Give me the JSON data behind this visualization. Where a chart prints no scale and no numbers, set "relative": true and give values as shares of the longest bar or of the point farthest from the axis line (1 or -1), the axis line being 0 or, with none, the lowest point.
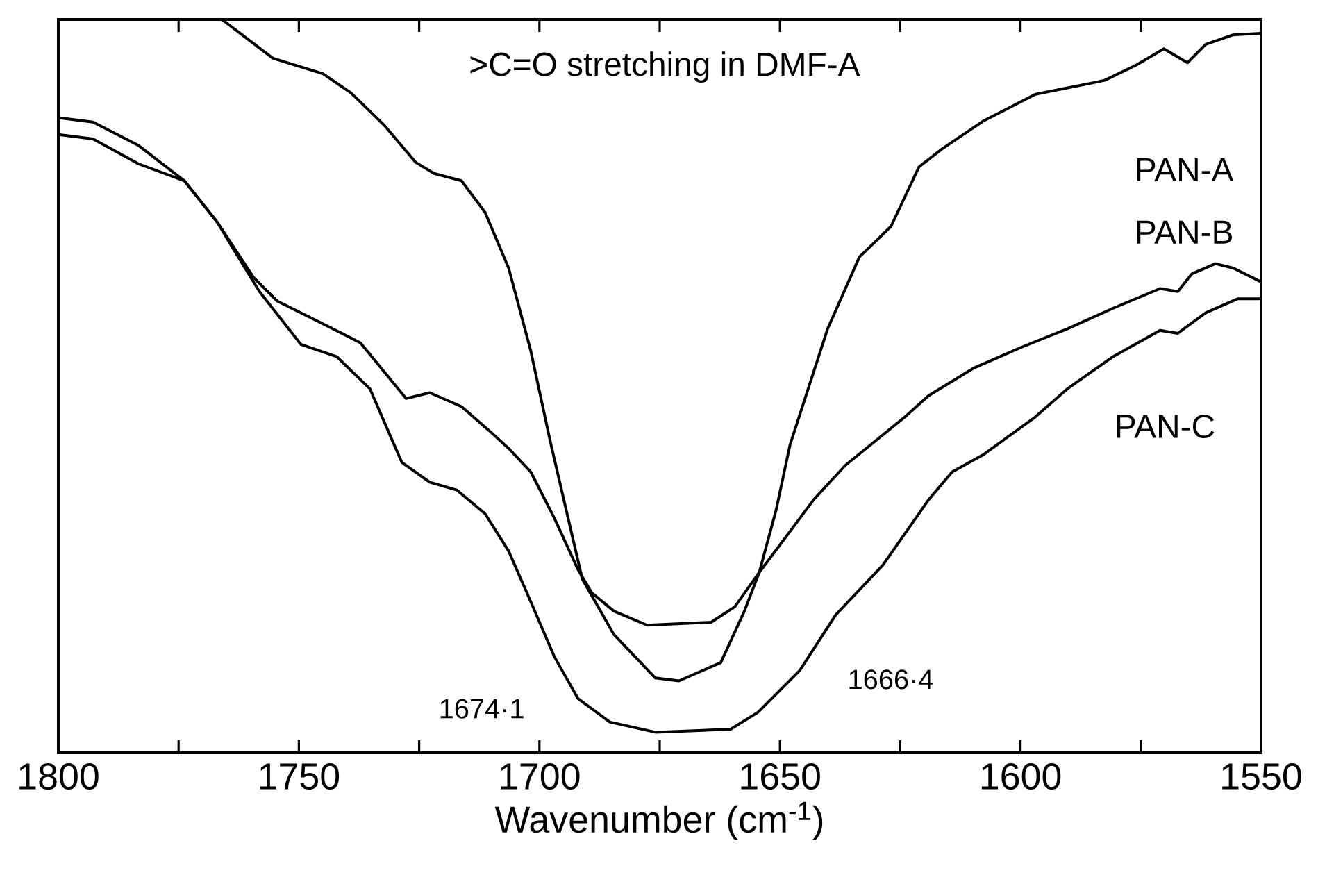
{
  "chart_data": {
    "type": "line",
    "title": ">C=O stretching in DMF-A",
    "xlabel": "Wavenumber (cm$^{-1}$)",
    "relative": true,
    "xlim": [
      1800,
      1550
    ],
    "xticks": [
      1800,
      {
        "value": 1775,
        "label": null
      },
      1750,
      {
        "value": 1725,
        "label": null
      },
      1700,
      {
        "value": 1675,
        "label": null
      },
      1650,
      {
        "value": 1625,
        "label": null
      },
      1600,
      {
        "value": 1575,
        "label": null
      },
      1550
    ],
    "legend": false,
    "grid": false,
    "marker": "none",
    "line_style": "solid",
    "annotations": [
      "1674·1",
      "1666·4"
    ],
    "series": [
      {
        "name": "PAN-A",
        "color": "#000000",
        "x": [
          1766.0,
          1755.4,
          1745.0,
          1739.2,
          1732.3,
          1725.7,
          1721.9,
          1716.2,
          1711.3,
          1706.4,
          1701.8,
          1697.8,
          1691.1,
          1684.5,
          1675.9,
          1671.0,
          1662.3,
          1657.4,
          1654.3,
          1650.8,
          1647.9,
          1640.1,
          1633.5,
          1626.9,
          1621.1,
          1616.2,
          1607.6,
          1596.9,
          1585.4,
          1582.5,
          1575.9,
          1570.2,
          1565.3,
          1561.5,
          1555.8,
          1550
        ],
        "values": [
          1.0,
          0.947,
          0.926,
          0.9,
          0.856,
          0.805,
          0.79,
          0.78,
          0.737,
          0.661,
          0.548,
          0.426,
          0.237,
          0.161,
          0.102,
          0.098,
          0.123,
          0.193,
          0.246,
          0.331,
          0.42,
          0.578,
          0.676,
          0.718,
          0.799,
          0.824,
          0.862,
          0.898,
          0.913,
          0.917,
          0.938,
          0.96,
          0.941,
          0.966,
          0.979,
          0.981
        ]
      },
      {
        "name": "PAN-B",
        "color": "#000000",
        "x": [
          1800,
          1792.8,
          1783.3,
          1773.8,
          1766.9,
          1759.4,
          1754.5,
          1745.0,
          1737.2,
          1727.7,
          1722.8,
          1716.2,
          1710.4,
          1706.4,
          1701.8,
          1696.9,
          1692.0,
          1689.1,
          1684.5,
          1677.6,
          1664.3,
          1659.4,
          1654.3,
          1648.8,
          1643.0,
          1636.4,
          1624.0,
          1619.1,
          1609.6,
          1599.8,
          1590.3,
          1580.8,
          1571.0,
          1567.3,
          1564.4,
          1559.5,
          1555.8,
          1550
        ],
        "values": [
          0.843,
          0.837,
          0.803,
          0.78,
          0.723,
          0.648,
          0.616,
          0.585,
          0.559,
          0.483,
          0.491,
          0.472,
          0.439,
          0.415,
          0.383,
          0.32,
          0.25,
          0.218,
          0.193,
          0.174,
          0.178,
          0.199,
          0.246,
          0.294,
          0.345,
          0.392,
          0.458,
          0.487,
          0.525,
          0.553,
          0.578,
          0.606,
          0.633,
          0.629,
          0.653,
          0.667,
          0.661,
          0.642
        ]
      },
      {
        "name": "PAN-C",
        "color": "#000000",
        "x": [
          1800,
          1792.8,
          1783.3,
          1773.8,
          1766.9,
          1764.0,
          1758.2,
          1749.6,
          1742.1,
          1735.2,
          1730.6,
          1728.6,
          1722.8,
          1717.1,
          1711.3,
          1706.4,
          1701.8,
          1696.9,
          1692.0,
          1685.4,
          1675.9,
          1660.3,
          1654.6,
          1645.9,
          1638.4,
          1628.6,
          1619.1,
          1614.2,
          1607.6,
          1596.9,
          1590.3,
          1580.8,
          1571.0,
          1567.3,
          1561.5,
          1554.9,
          1550
        ],
        "values": [
          0.866,
          0.86,
          0.828,
          0.78,
          0.723,
          0.691,
          0.629,
          0.557,
          0.54,
          0.496,
          0.426,
          0.396,
          0.369,
          0.358,
          0.326,
          0.275,
          0.206,
          0.131,
          0.074,
          0.042,
          0.028,
          0.032,
          0.055,
          0.112,
          0.188,
          0.256,
          0.345,
          0.383,
          0.407,
          0.458,
          0.496,
          0.54,
          0.576,
          0.572,
          0.6,
          0.619,
          0.619
        ]
      }
    ]
  }
}
